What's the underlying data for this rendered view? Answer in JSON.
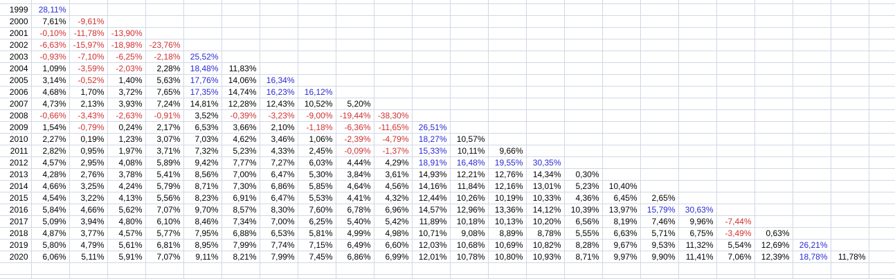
{
  "spreadsheet": {
    "description": "Annualized returns triangle table",
    "value_format": "percent-comma-decimal",
    "high_threshold_percent": 15,
    "colors": {
      "positive": "#000000",
      "negative": "#d03030",
      "high": "#2929d4",
      "gridline": "#d0d7e5",
      "background": "#ffffff"
    },
    "rows": [
      {
        "year": "1999",
        "values": [
          "28,11%"
        ]
      },
      {
        "year": "2000",
        "values": [
          "7,61%",
          "-9,61%"
        ]
      },
      {
        "year": "2001",
        "values": [
          "-0,10%",
          "-11,78%",
          "-13,90%"
        ]
      },
      {
        "year": "2002",
        "values": [
          "-6,63%",
          "-15,97%",
          "-18,98%",
          "-23,76%"
        ]
      },
      {
        "year": "2003",
        "values": [
          "-0,93%",
          "-7,10%",
          "-6,25%",
          "-2,18%",
          "25,52%"
        ]
      },
      {
        "year": "2004",
        "values": [
          "1,09%",
          "-3,59%",
          "-2,03%",
          "2,28%",
          "18,48%",
          "11,83%"
        ]
      },
      {
        "year": "2005",
        "values": [
          "3,14%",
          "-0,52%",
          "1,40%",
          "5,63%",
          "17,76%",
          "14,06%",
          "16,34%"
        ]
      },
      {
        "year": "2006",
        "values": [
          "4,68%",
          "1,70%",
          "3,72%",
          "7,65%",
          "17,35%",
          "14,74%",
          "16,23%",
          "16,12%"
        ]
      },
      {
        "year": "2007",
        "values": [
          "4,73%",
          "2,13%",
          "3,93%",
          "7,24%",
          "14,81%",
          "12,28%",
          "12,43%",
          "10,52%",
          "5,20%"
        ]
      },
      {
        "year": "2008",
        "values": [
          "-0,66%",
          "-3,43%",
          "-2,63%",
          "-0,91%",
          "3,52%",
          "-0,39%",
          "-3,23%",
          "-9,00%",
          "-19,44%",
          "-38,30%"
        ]
      },
      {
        "year": "2009",
        "values": [
          "1,54%",
          "-0,79%",
          "0,24%",
          "2,17%",
          "6,53%",
          "3,66%",
          "2,10%",
          "-1,18%",
          "-6,36%",
          "-11,65%",
          "26,51%"
        ]
      },
      {
        "year": "2010",
        "values": [
          "2,27%",
          "0,19%",
          "1,23%",
          "3,07%",
          "7,03%",
          "4,62%",
          "3,46%",
          "1,06%",
          "-2,39%",
          "-4,79%",
          "18,27%",
          "10,57%"
        ]
      },
      {
        "year": "2011",
        "values": [
          "2,82%",
          "0,95%",
          "1,97%",
          "3,71%",
          "7,32%",
          "5,23%",
          "4,33%",
          "2,45%",
          "-0,09%",
          "-1,37%",
          "15,33%",
          "10,11%",
          "9,66%"
        ]
      },
      {
        "year": "2012",
        "values": [
          "4,57%",
          "2,95%",
          "4,08%",
          "5,89%",
          "9,42%",
          "7,77%",
          "7,27%",
          "6,03%",
          "4,44%",
          "4,29%",
          "18,91%",
          "16,48%",
          "19,55%",
          "30,35%"
        ]
      },
      {
        "year": "2013",
        "values": [
          "4,28%",
          "2,76%",
          "3,78%",
          "5,41%",
          "8,56%",
          "7,00%",
          "6,47%",
          "5,30%",
          "3,84%",
          "3,61%",
          "14,93%",
          "12,21%",
          "12,76%",
          "14,34%",
          "0,30%"
        ]
      },
      {
        "year": "2014",
        "values": [
          "4,66%",
          "3,25%",
          "4,24%",
          "5,79%",
          "8,71%",
          "7,30%",
          "6,86%",
          "5,85%",
          "4,64%",
          "4,56%",
          "14,16%",
          "11,84%",
          "12,16%",
          "13,01%",
          "5,23%",
          "10,40%"
        ]
      },
      {
        "year": "2015",
        "values": [
          "4,54%",
          "3,22%",
          "4,13%",
          "5,56%",
          "8,23%",
          "6,91%",
          "6,47%",
          "5,53%",
          "4,41%",
          "4,32%",
          "12,44%",
          "10,26%",
          "10,19%",
          "10,33%",
          "4,36%",
          "6,45%",
          "2,65%"
        ]
      },
      {
        "year": "2016",
        "values": [
          "5,84%",
          "4,66%",
          "5,62%",
          "7,07%",
          "9,70%",
          "8,57%",
          "8,30%",
          "7,60%",
          "6,78%",
          "6,96%",
          "14,57%",
          "12,96%",
          "13,36%",
          "14,12%",
          "10,39%",
          "13,97%",
          "15,79%",
          "30,63%"
        ]
      },
      {
        "year": "2017",
        "values": [
          "5,09%",
          "3,94%",
          "4,80%",
          "6,10%",
          "8,46%",
          "7,34%",
          "7,00%",
          "6,25%",
          "5,40%",
          "5,42%",
          "11,89%",
          "10,18%",
          "10,13%",
          "10,20%",
          "6,56%",
          "8,19%",
          "7,46%",
          "9,96%",
          "-7,44%"
        ]
      },
      {
        "year": "2018",
        "values": [
          "4,87%",
          "3,77%",
          "4,57%",
          "5,77%",
          "7,95%",
          "6,88%",
          "6,53%",
          "5,81%",
          "4,99%",
          "4,98%",
          "10,71%",
          "9,08%",
          "8,89%",
          "8,78%",
          "5,55%",
          "6,63%",
          "5,71%",
          "6,75%",
          "-3,49%",
          "0,63%"
        ]
      },
      {
        "year": "2019",
        "values": [
          "5,80%",
          "4,79%",
          "5,61%",
          "6,81%",
          "8,95%",
          "7,99%",
          "7,74%",
          "7,15%",
          "6,49%",
          "6,60%",
          "12,03%",
          "10,68%",
          "10,69%",
          "10,82%",
          "8,28%",
          "9,67%",
          "9,53%",
          "11,32%",
          "5,54%",
          "12,69%",
          "26,21%"
        ]
      },
      {
        "year": "2020",
        "values": [
          "6,06%",
          "5,11%",
          "5,91%",
          "7,07%",
          "9,11%",
          "8,21%",
          "7,99%",
          "7,45%",
          "6,86%",
          "6,99%",
          "12,01%",
          "10,78%",
          "10,80%",
          "10,93%",
          "8,71%",
          "9,97%",
          "9,90%",
          "11,41%",
          "7,06%",
          "12,39%",
          "18,78%",
          "11,78%"
        ]
      }
    ]
  }
}
